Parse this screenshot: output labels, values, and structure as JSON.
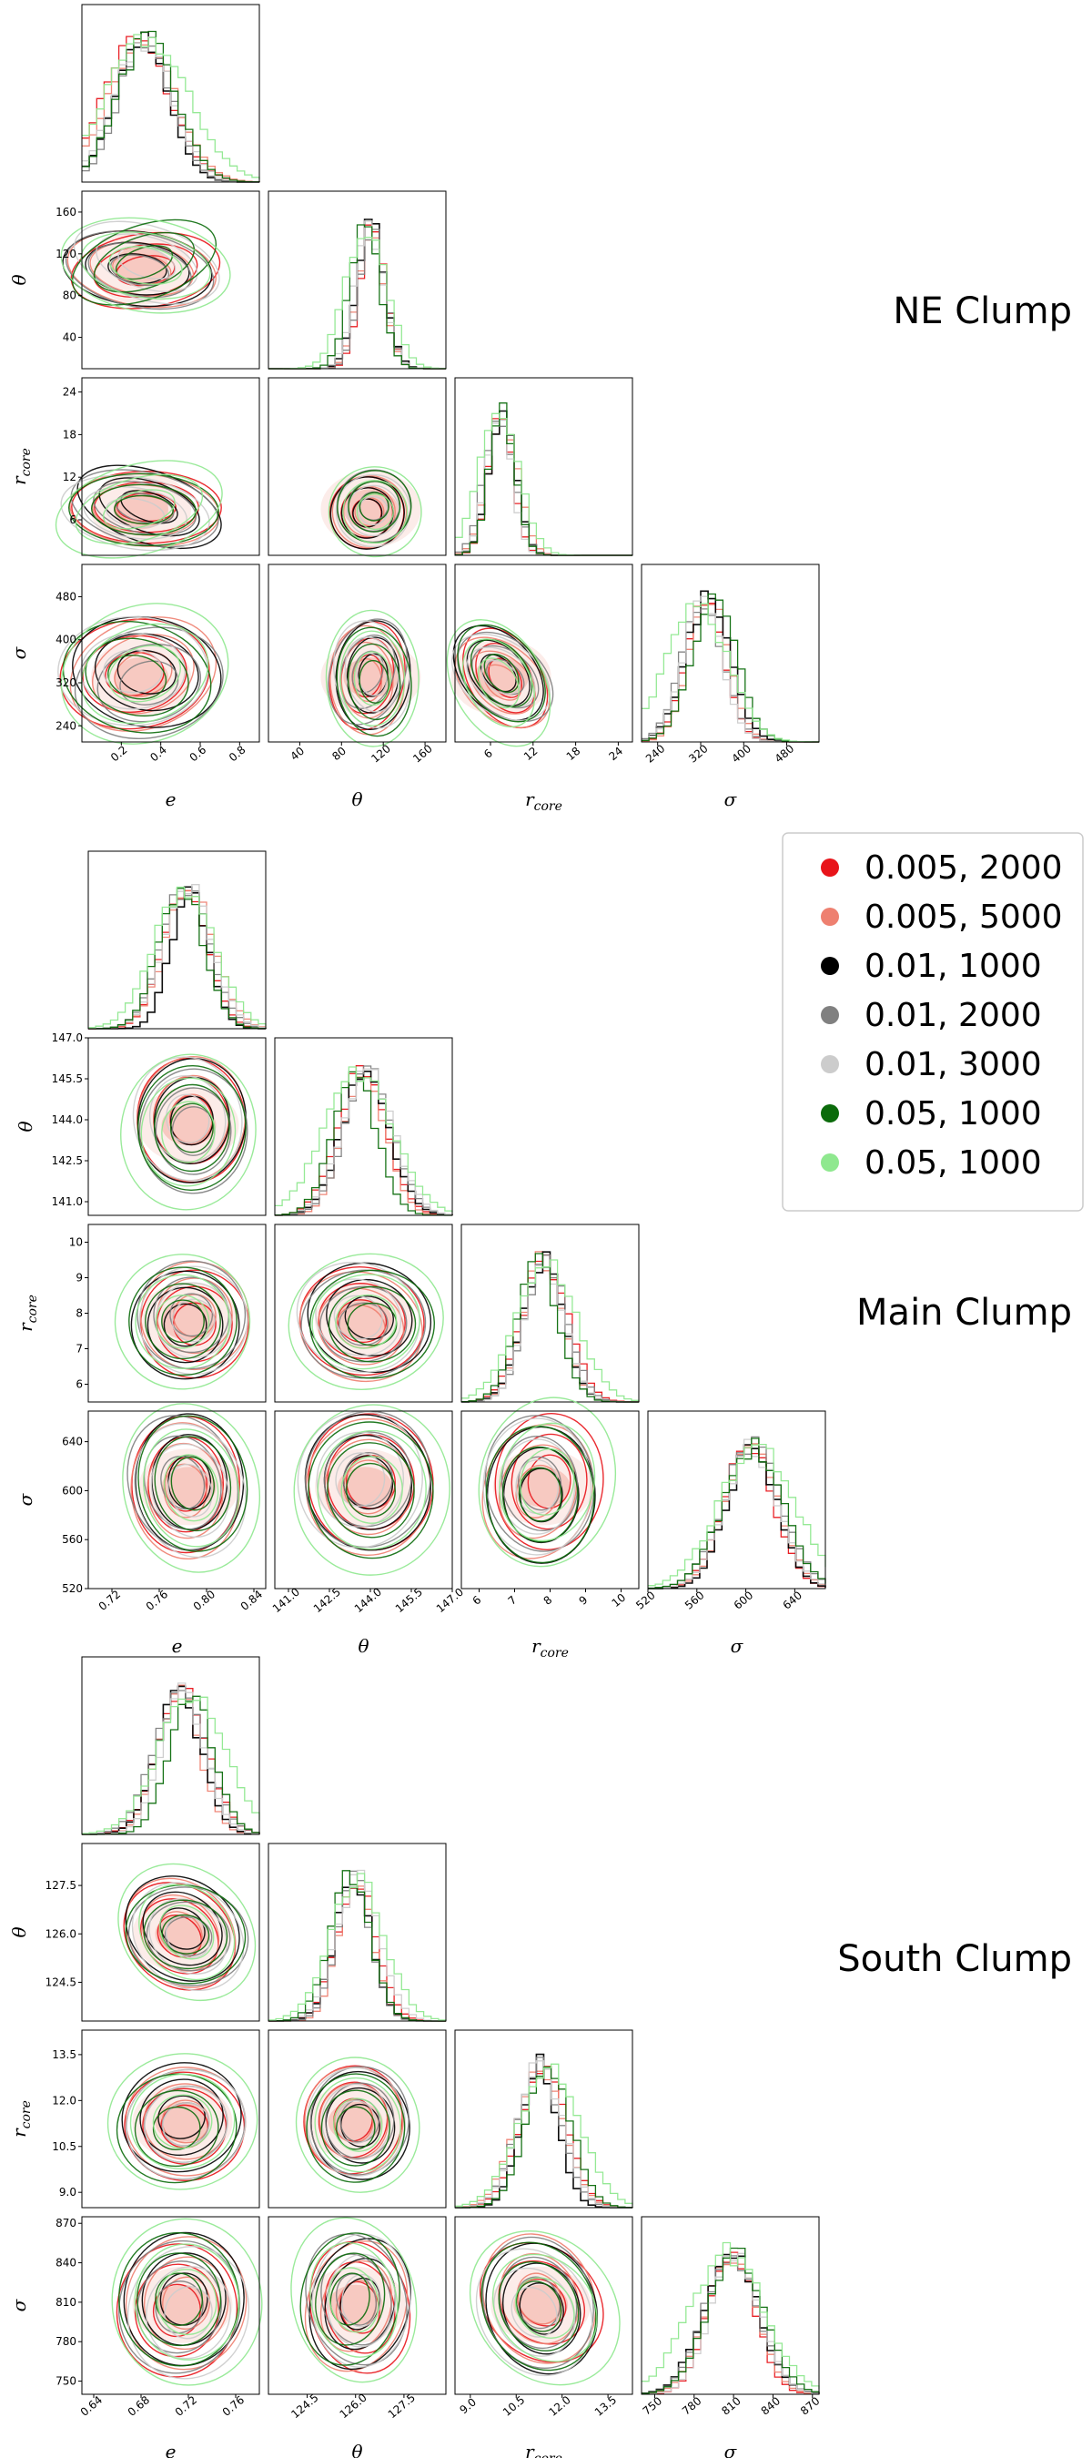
{
  "chart_data": {
    "type": "corner",
    "legend": {
      "placement": "right",
      "entries": [
        {
          "label": "0.005, 2000",
          "color": "#e8141a"
        },
        {
          "label": "0.005, 5000",
          "color": "#ee8070"
        },
        {
          "label": "0.01, 1000",
          "color": "#000000"
        },
        {
          "label": "0.01, 2000",
          "color": "#808080"
        },
        {
          "label": "0.01, 3000",
          "color": "#cccccc"
        },
        {
          "label": "0.05, 1000",
          "color": "#0b6b0b"
        },
        {
          "label": "0.05, 1000 ",
          "color": "#8fe88f"
        }
      ]
    },
    "panels": [
      {
        "title": "NE Clump",
        "params": [
          {
            "label": "e",
            "sub": "",
            "range": [
              0.0,
              0.9
            ],
            "ticks": [
              "0.2",
              "0.4",
              "0.6",
              "0.8"
            ],
            "tickvals": [
              0.2,
              0.4,
              0.6,
              0.8
            ],
            "mean": 0.3,
            "std": 0.15
          },
          {
            "label": "θ",
            "sub": "",
            "range": [
              10,
              180
            ],
            "ticks": [
              "40",
              "80",
              "120",
              "160"
            ],
            "tickvals": [
              40,
              80,
              120,
              160
            ],
            "mean": 108,
            "std": 14
          },
          {
            "label": "r",
            "sub": "core",
            "range": [
              1,
              26
            ],
            "ticks": [
              "6",
              "12",
              "18",
              "24"
            ],
            "tickvals": [
              6,
              12,
              18,
              24
            ],
            "mean": 7.5,
            "std": 2
          },
          {
            "label": "σ",
            "sub": "",
            "range": [
              210,
              540
            ],
            "ticks": [
              "240",
              "320",
              "400",
              "480"
            ],
            "tickvals": [
              240,
              320,
              400,
              480
            ],
            "mean": 330,
            "std": 40
          }
        ]
      },
      {
        "title": "Main Clump",
        "params": [
          {
            "label": "e",
            "sub": "",
            "range": [
              0.7,
              0.85
            ],
            "ticks": [
              "0.72",
              "0.76",
              "0.80",
              "0.84"
            ],
            "tickvals": [
              0.72,
              0.76,
              0.8,
              0.84
            ],
            "mean": 0.785,
            "std": 0.018
          },
          {
            "label": "θ",
            "sub": "",
            "range": [
              140.5,
              147.0
            ],
            "ticks": [
              "141.0",
              "142.5",
              "144.0",
              "145.5",
              "147.0"
            ],
            "tickvals": [
              141.0,
              142.5,
              144.0,
              145.5,
              147.0
            ],
            "mean": 143.8,
            "std": 0.9
          },
          {
            "label": "r",
            "sub": "core",
            "range": [
              5.5,
              10.5
            ],
            "ticks": [
              "6",
              "7",
              "8",
              "9",
              "10"
            ],
            "tickvals": [
              6,
              7,
              8,
              9,
              10
            ],
            "mean": 7.8,
            "std": 0.6
          },
          {
            "label": "σ",
            "sub": "",
            "range": [
              520,
              665
            ],
            "ticks": [
              "520",
              "560",
              "600",
              "640"
            ],
            "tickvals": [
              520,
              560,
              600,
              640
            ],
            "mean": 603,
            "std": 22
          }
        ]
      },
      {
        "title": "South Clump",
        "params": [
          {
            "label": "e",
            "sub": "",
            "range": [
              0.63,
              0.78
            ],
            "ticks": [
              "0.64",
              "0.68",
              "0.72",
              "0.76"
            ],
            "tickvals": [
              0.64,
              0.68,
              0.72,
              0.76
            ],
            "mean": 0.715,
            "std": 0.02
          },
          {
            "label": "θ",
            "sub": "",
            "range": [
              123.3,
              128.8
            ],
            "ticks": [
              "124.5",
              "126.0",
              "127.5"
            ],
            "tickvals": [
              124.5,
              126.0,
              127.5
            ],
            "mean": 126.0,
            "std": 0.6
          },
          {
            "label": "r",
            "sub": "core",
            "range": [
              8.5,
              14.3
            ],
            "ticks": [
              "9.0",
              "10.5",
              "12.0",
              "13.5"
            ],
            "tickvals": [
              9.0,
              10.5,
              12.0,
              13.5
            ],
            "mean": 11.3,
            "std": 0.7
          },
          {
            "label": "σ",
            "sub": "",
            "range": [
              740,
              875
            ],
            "ticks": [
              "750",
              "780",
              "810",
              "840",
              "870"
            ],
            "tickvals": [
              750,
              780,
              810,
              840,
              870
            ],
            "mean": 808,
            "std": 20
          }
        ]
      }
    ]
  }
}
